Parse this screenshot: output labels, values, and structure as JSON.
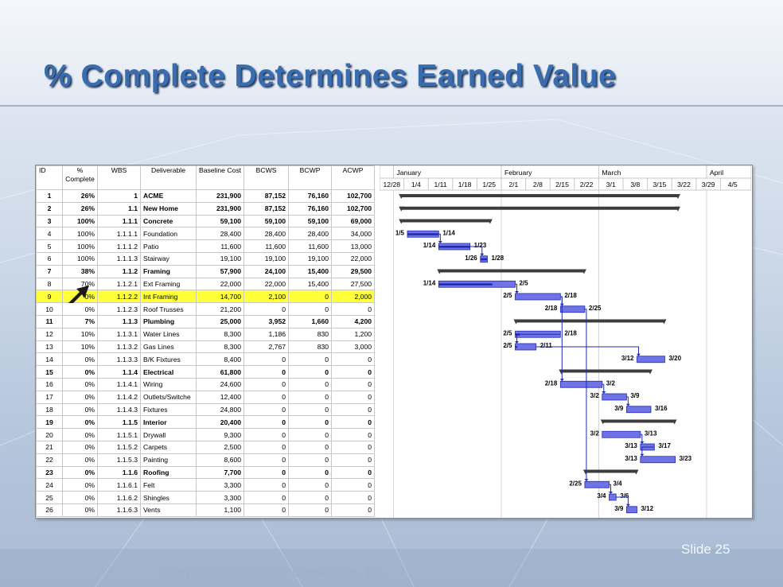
{
  "slide": {
    "title": "% Complete Determines Earned Value",
    "number_label": "Slide 25",
    "copyright": "Copyright 2007 Custer Consultants, Inc."
  },
  "table": {
    "headers": [
      "ID",
      "%\nComplete",
      "WBS",
      "Deliverable",
      "Baseline Cost",
      "BCWS",
      "BCWP",
      "ACWP"
    ],
    "rows": [
      {
        "id": "1",
        "pct": "26%",
        "wbs": "1",
        "name": "ACME",
        "baseline": "231,900",
        "bcws": "87,152",
        "bcwp": "76,160",
        "acwp": "102,700",
        "bold": true
      },
      {
        "id": "2",
        "pct": "26%",
        "wbs": "1.1",
        "name": "New Home",
        "baseline": "231,900",
        "bcws": "87,152",
        "bcwp": "76,160",
        "acwp": "102,700",
        "bold": true
      },
      {
        "id": "3",
        "pct": "100%",
        "wbs": "1.1.1",
        "name": "Concrete",
        "baseline": "59,100",
        "bcws": "59,100",
        "bcwp": "59,100",
        "acwp": "69,000",
        "bold": true
      },
      {
        "id": "4",
        "pct": "100%",
        "wbs": "1.1.1.1",
        "name": "Foundation",
        "baseline": "28,400",
        "bcws": "28,400",
        "bcwp": "28,400",
        "acwp": "34,000"
      },
      {
        "id": "5",
        "pct": "100%",
        "wbs": "1.1.1.2",
        "name": "Patio",
        "baseline": "11,600",
        "bcws": "11,600",
        "bcwp": "11,600",
        "acwp": "13,000"
      },
      {
        "id": "6",
        "pct": "100%",
        "wbs": "1.1.1.3",
        "name": "Stairway",
        "baseline": "19,100",
        "bcws": "19,100",
        "bcwp": "19,100",
        "acwp": "22,000"
      },
      {
        "id": "7",
        "pct": "38%",
        "wbs": "1.1.2",
        "name": "Framing",
        "baseline": "57,900",
        "bcws": "24,100",
        "bcwp": "15,400",
        "acwp": "29,500",
        "bold": true
      },
      {
        "id": "8",
        "pct": "70%",
        "wbs": "1.1.2.1",
        "name": "Ext Framing",
        "baseline": "22,000",
        "bcws": "22,000",
        "bcwp": "15,400",
        "acwp": "27,500"
      },
      {
        "id": "9",
        "pct": "0%",
        "wbs": "1.1.2.2",
        "name": "Int Framing",
        "baseline": "14,700",
        "bcws": "2,100",
        "bcwp": "0",
        "acwp": "2,000",
        "highlight": true
      },
      {
        "id": "10",
        "pct": "0%",
        "wbs": "1.1.2.3",
        "name": "Roof Trusses",
        "baseline": "21,200",
        "bcws": "0",
        "bcwp": "0",
        "acwp": "0"
      },
      {
        "id": "11",
        "pct": "7%",
        "wbs": "1.1.3",
        "name": "Plumbing",
        "baseline": "25,000",
        "bcws": "3,952",
        "bcwp": "1,660",
        "acwp": "4,200",
        "bold": true
      },
      {
        "id": "12",
        "pct": "10%",
        "wbs": "1.1.3.1",
        "name": "Water Lines",
        "baseline": "8,300",
        "bcws": "1,186",
        "bcwp": "830",
        "acwp": "1,200"
      },
      {
        "id": "13",
        "pct": "10%",
        "wbs": "1.1.3.2",
        "name": "Gas Lines",
        "baseline": "8,300",
        "bcws": "2,767",
        "bcwp": "830",
        "acwp": "3,000"
      },
      {
        "id": "14",
        "pct": "0%",
        "wbs": "1.1.3.3",
        "name": "B/K Fixtures",
        "baseline": "8,400",
        "bcws": "0",
        "bcwp": "0",
        "acwp": "0"
      },
      {
        "id": "15",
        "pct": "0%",
        "wbs": "1.1.4",
        "name": "Electrical",
        "baseline": "61,800",
        "bcws": "0",
        "bcwp": "0",
        "acwp": "0",
        "bold": true
      },
      {
        "id": "16",
        "pct": "0%",
        "wbs": "1.1.4.1",
        "name": "Wiring",
        "baseline": "24,600",
        "bcws": "0",
        "bcwp": "0",
        "acwp": "0"
      },
      {
        "id": "17",
        "pct": "0%",
        "wbs": "1.1.4.2",
        "name": "Outlets/Switche",
        "baseline": "12,400",
        "bcws": "0",
        "bcwp": "0",
        "acwp": "0"
      },
      {
        "id": "18",
        "pct": "0%",
        "wbs": "1.1.4.3",
        "name": "Fixtures",
        "baseline": "24,800",
        "bcws": "0",
        "bcwp": "0",
        "acwp": "0"
      },
      {
        "id": "19",
        "pct": "0%",
        "wbs": "1.1.5",
        "name": "Interior",
        "baseline": "20,400",
        "bcws": "0",
        "bcwp": "0",
        "acwp": "0",
        "bold": true
      },
      {
        "id": "20",
        "pct": "0%",
        "wbs": "1.1.5.1",
        "name": "Drywall",
        "baseline": "9,300",
        "bcws": "0",
        "bcwp": "0",
        "acwp": "0"
      },
      {
        "id": "21",
        "pct": "0%",
        "wbs": "1.1.5.2",
        "name": "Carpets",
        "baseline": "2,500",
        "bcws": "0",
        "bcwp": "0",
        "acwp": "0"
      },
      {
        "id": "22",
        "pct": "0%",
        "wbs": "1.1.5.3",
        "name": "Painting",
        "baseline": "8,600",
        "bcws": "0",
        "bcwp": "0",
        "acwp": "0"
      },
      {
        "id": "23",
        "pct": "0%",
        "wbs": "1.1.6",
        "name": "Roofing",
        "baseline": "7,700",
        "bcws": "0",
        "bcwp": "0",
        "acwp": "0",
        "bold": true
      },
      {
        "id": "24",
        "pct": "0%",
        "wbs": "1.1.6.1",
        "name": "Felt",
        "baseline": "3,300",
        "bcws": "0",
        "bcwp": "0",
        "acwp": "0"
      },
      {
        "id": "25",
        "pct": "0%",
        "wbs": "1.1.6.2",
        "name": "Shingles",
        "baseline": "3,300",
        "bcws": "0",
        "bcwp": "0",
        "acwp": "0"
      },
      {
        "id": "26",
        "pct": "0%",
        "wbs": "1.1.6.3",
        "name": "Vents",
        "baseline": "1,100",
        "bcws": "0",
        "bcwp": "0",
        "acwp": "0"
      }
    ]
  },
  "gantt": {
    "months": [
      "January",
      "February",
      "March",
      "April"
    ],
    "weeks": [
      "12/28",
      "1/4",
      "1/11",
      "1/18",
      "1/25",
      "2/1",
      "2/8",
      "2/15",
      "2/22",
      "3/1",
      "3/8",
      "3/15",
      "3/22",
      "3/29",
      "4/5"
    ],
    "tasks": [
      {
        "row": 1,
        "kind": "summary",
        "start": "1/3",
        "finish": "3/24"
      },
      {
        "row": 2,
        "kind": "summary",
        "start": "1/3",
        "finish": "3/24"
      },
      {
        "row": 3,
        "kind": "summary",
        "start": "1/3",
        "finish": "1/29"
      },
      {
        "row": 4,
        "kind": "task",
        "start": "1/5",
        "finish": "1/14",
        "pct": 100,
        "start_label": "1/5",
        "finish_label": "1/14"
      },
      {
        "row": 5,
        "kind": "task",
        "start": "1/14",
        "finish": "1/23",
        "pct": 100,
        "start_label": "1/14",
        "finish_label": "1/23"
      },
      {
        "row": 6,
        "kind": "task",
        "start": "1/26",
        "finish": "1/28",
        "pct": 100,
        "start_label": "1/26",
        "finish_label": "1/28"
      },
      {
        "row": 7,
        "kind": "summary",
        "start": "1/14",
        "finish": "2/25"
      },
      {
        "row": 8,
        "kind": "task",
        "start": "1/14",
        "finish": "2/5",
        "pct": 70,
        "start_label": "1/14",
        "finish_label": "2/5"
      },
      {
        "row": 9,
        "kind": "task",
        "start": "2/5",
        "finish": "2/18",
        "pct": 0,
        "start_label": "2/5",
        "finish_label": "2/18"
      },
      {
        "row": 10,
        "kind": "task",
        "start": "2/18",
        "finish": "2/25",
        "pct": 0,
        "start_label": "2/18",
        "finish_label": "2/25"
      },
      {
        "row": 11,
        "kind": "summary",
        "start": "2/5",
        "finish": "3/20"
      },
      {
        "row": 12,
        "kind": "task",
        "start": "2/5",
        "finish": "2/18",
        "pct": 10,
        "start_label": "2/5",
        "finish_label": "2/18"
      },
      {
        "row": 13,
        "kind": "task",
        "start": "2/5",
        "finish": "2/11",
        "pct": 10,
        "start_label": "2/5",
        "finish_label": "2/11"
      },
      {
        "row": 14,
        "kind": "task",
        "start": "3/12",
        "finish": "3/20",
        "pct": 0,
        "start_label": "3/12",
        "finish_label": "3/20"
      },
      {
        "row": 15,
        "kind": "summary",
        "start": "2/18",
        "finish": "3/16"
      },
      {
        "row": 16,
        "kind": "task",
        "start": "2/18",
        "finish": "3/2",
        "pct": 0,
        "start_label": "2/18",
        "finish_label": "3/2"
      },
      {
        "row": 17,
        "kind": "task",
        "start": "3/2",
        "finish": "3/9",
        "pct": 0,
        "start_label": "3/2",
        "finish_label": "3/9"
      },
      {
        "row": 18,
        "kind": "task",
        "start": "3/9",
        "finish": "3/16",
        "pct": 0,
        "start_label": "3/9",
        "finish_label": "3/16"
      },
      {
        "row": 19,
        "kind": "summary",
        "start": "3/2",
        "finish": "3/23"
      },
      {
        "row": 20,
        "kind": "task",
        "start": "3/2",
        "finish": "3/13",
        "pct": 0,
        "start_label": "3/2",
        "finish_label": "3/13"
      },
      {
        "row": 21,
        "kind": "task",
        "start": "3/13",
        "finish": "3/17",
        "pct": 0,
        "start_label": "3/13",
        "finish_label": "3/17"
      },
      {
        "row": 22,
        "kind": "task",
        "start": "3/13",
        "finish": "3/23",
        "pct": 0,
        "start_label": "3/13",
        "finish_label": "3/23"
      },
      {
        "row": 23,
        "kind": "summary",
        "start": "2/25",
        "finish": "3/12"
      },
      {
        "row": 24,
        "kind": "task",
        "start": "2/25",
        "finish": "3/4",
        "pct": 0,
        "start_label": "2/25",
        "finish_label": "3/4"
      },
      {
        "row": 25,
        "kind": "task",
        "start": "3/4",
        "finish": "3/6",
        "pct": 0,
        "start_label": "3/4",
        "finish_label": "3/6"
      },
      {
        "row": 26,
        "kind": "task",
        "start": "3/9",
        "finish": "3/12",
        "pct": 0,
        "start_label": "3/9",
        "finish_label": "3/12"
      }
    ]
  },
  "colors": {
    "bar_fill": "#6f73e6",
    "bar_progress": "#1f2bb0",
    "summary_bar": "#3d3d3d",
    "highlight_row": "#ffff3a",
    "title_text": "#3a6db0"
  }
}
